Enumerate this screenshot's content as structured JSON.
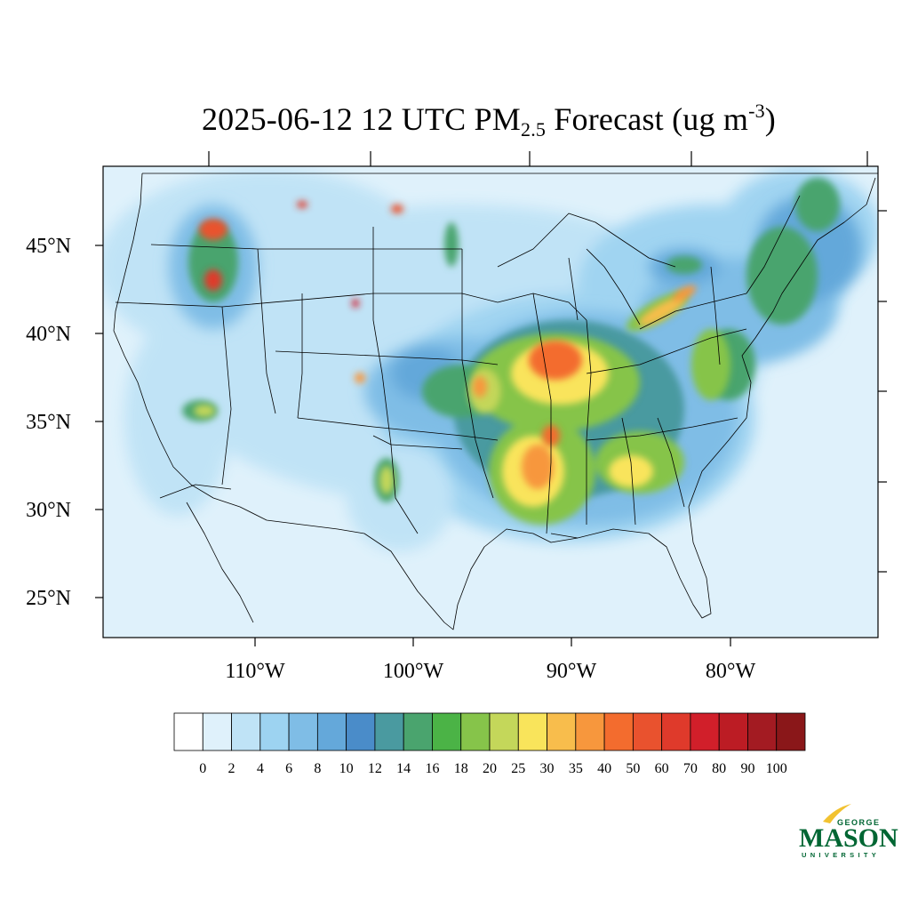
{
  "title": {
    "date": "2025-06-12 12 UTC PM",
    "subscript": "2.5",
    "suffix": " Forecast (ug m",
    "superscript": "-3",
    "close": ")"
  },
  "map": {
    "lat_labels": [
      "45°N",
      "40°N",
      "35°N",
      "30°N",
      "25°N"
    ],
    "lon_labels": [
      "110°W",
      "100°W",
      "90°W",
      "80°W"
    ]
  },
  "colorbar": {
    "levels": [
      "0",
      "2",
      "4",
      "6",
      "8",
      "10",
      "12",
      "14",
      "16",
      "18",
      "20",
      "25",
      "30",
      "35",
      "40",
      "50",
      "60",
      "70",
      "80",
      "90",
      "100"
    ],
    "colors": [
      "#ffffff",
      "#dff1fb",
      "#bfe3f6",
      "#9dd3f1",
      "#7fbde6",
      "#64a8da",
      "#4a8cc9",
      "#4a9aa0",
      "#4aa46e",
      "#4bb346",
      "#86c44a",
      "#c4d75a",
      "#f9e45b",
      "#f8bd4c",
      "#f7973d",
      "#f36c2e",
      "#e9522e",
      "#df3a2b",
      "#d11f2a",
      "#bc1c24",
      "#a31b22",
      "#8a1719"
    ]
  },
  "logo": {
    "line1": "GEORGE",
    "line2": "MASON",
    "line3": "UNIVERSITY",
    "color": "#006633",
    "accent": "#f2c230"
  }
}
